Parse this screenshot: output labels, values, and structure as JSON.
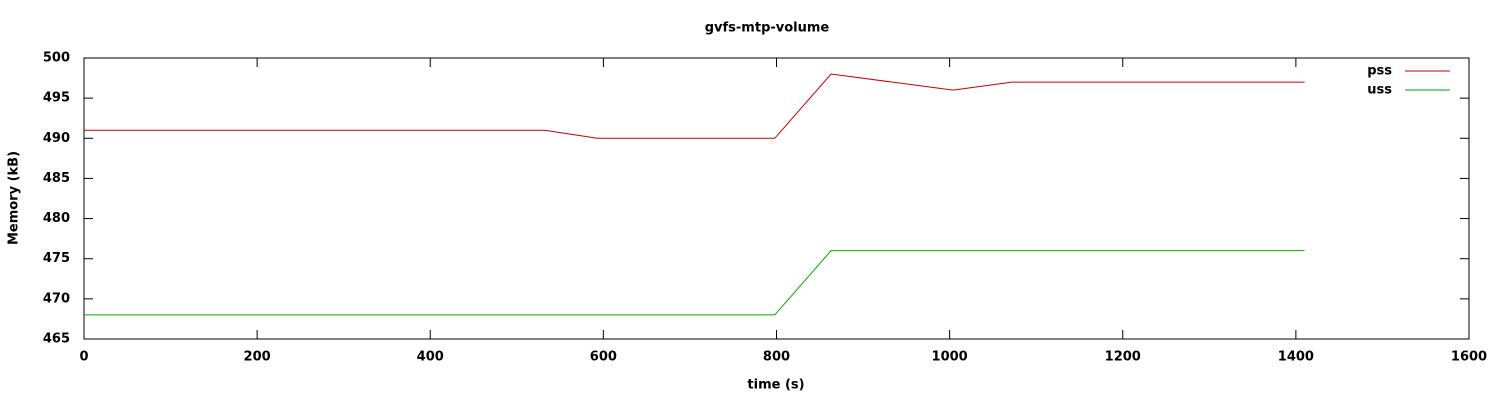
{
  "chart_data": {
    "type": "line",
    "title": "gvfs-mtp-volume",
    "x_label": "time (s)",
    "y_label": "Memory (kB)",
    "series": [
      {
        "name": "pss",
        "color": "#cc0000",
        "x": [
          0,
          532,
          593,
          798,
          863,
          1004,
          1072,
          1410
        ],
        "values": [
          491,
          491,
          490,
          490,
          498,
          496,
          497,
          497
        ]
      },
      {
        "name": "uss",
        "color": "#00aa00",
        "x": [
          0,
          798,
          863,
          1410
        ],
        "values": [
          468,
          468,
          476,
          476
        ]
      }
    ],
    "xlim": [
      0,
      1600
    ],
    "xticks": [
      0,
      200,
      400,
      600,
      800,
      1000,
      1200,
      1400,
      1600
    ],
    "ylim": [
      465,
      500
    ],
    "yticks": [
      465,
      470,
      475,
      480,
      485,
      490,
      495,
      500
    ],
    "grid": false,
    "legend": "top-right"
  }
}
